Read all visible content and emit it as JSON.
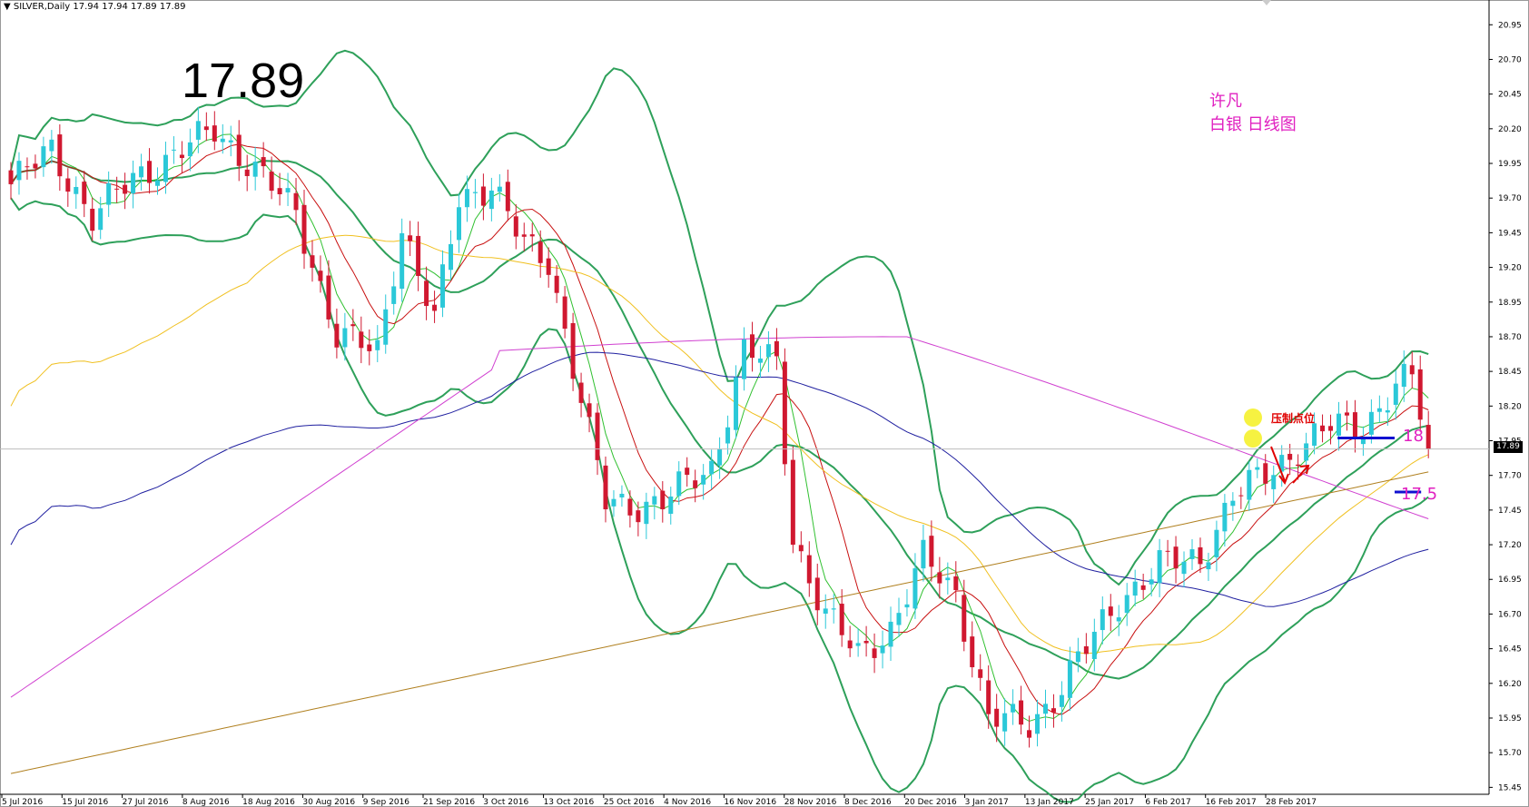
{
  "header": {
    "text": "▼ SILVER,Daily  17.94 17.94 17.89 17.89"
  },
  "big_price": "17.89",
  "note": {
    "line1": "许凡",
    "line2": "白银 日线图"
  },
  "annotations": {
    "pressure": "压制点位",
    "level_high": "18",
    "level_low": "17.5"
  },
  "price_tag": "17.89",
  "colors": {
    "bull": "#2bc8d8",
    "bear": "#d01830",
    "bollinger": "#2ea05a",
    "ma_red": "#c81010",
    "ma_green": "#30c030",
    "ma_yellow": "#f0c020",
    "ma_blue": "#2020a0",
    "ma_magenta": "#d040d0",
    "ma_brown": "#b08020",
    "level_line": "#1010d0"
  },
  "chart_data": {
    "type": "candlestick",
    "title": "SILVER,Daily",
    "y_ticks": [
      "20.95",
      "20.70",
      "20.45",
      "20.20",
      "19.95",
      "19.70",
      "19.45",
      "19.20",
      "18.95",
      "18.70",
      "18.45",
      "18.20",
      "17.95",
      "17.70",
      "17.45",
      "17.20",
      "16.95",
      "16.70",
      "16.45",
      "16.20",
      "15.95",
      "15.70",
      "15.45"
    ],
    "ylim": [
      15.4,
      21.05
    ],
    "x_ticks": [
      "5 Jul 2016",
      "15 Jul 2016",
      "27 Jul 2016",
      "8 Aug 2016",
      "18 Aug 2016",
      "30 Aug 2016",
      "9 Sep 2016",
      "21 Sep 2016",
      "3 Oct 2016",
      "13 Oct 2016",
      "25 Oct 2016",
      "4 Nov 2016",
      "16 Nov 2016",
      "28 Nov 2016",
      "8 Dec 2016",
      "20 Dec 2016",
      "3 Jan 2017",
      "13 Jan 2017",
      "25 Jan 2017",
      "6 Feb 2017",
      "16 Feb 2017",
      "28 Feb 2017"
    ],
    "close_anchors": [
      [
        0,
        19.8
      ],
      [
        5,
        20.05
      ],
      [
        10,
        19.55
      ],
      [
        15,
        19.85
      ],
      [
        20,
        20.0
      ],
      [
        25,
        20.2
      ],
      [
        30,
        19.9
      ],
      [
        35,
        19.6
      ],
      [
        40,
        18.7
      ],
      [
        45,
        18.6
      ],
      [
        48,
        19.5
      ],
      [
        52,
        18.8
      ],
      [
        55,
        19.7
      ],
      [
        59,
        19.8
      ],
      [
        63,
        19.35
      ],
      [
        66,
        19.25
      ],
      [
        69,
        18.5
      ],
      [
        73,
        17.5
      ],
      [
        76,
        17.48
      ],
      [
        80,
        17.52
      ],
      [
        86,
        17.75
      ],
      [
        90,
        18.6
      ],
      [
        94,
        18.5
      ],
      [
        96,
        17.25
      ],
      [
        100,
        16.7
      ],
      [
        104,
        16.4
      ],
      [
        108,
        16.6
      ],
      [
        112,
        17.1
      ],
      [
        116,
        16.85
      ],
      [
        120,
        15.95
      ],
      [
        125,
        15.9
      ],
      [
        128,
        16.1
      ],
      [
        132,
        16.45
      ],
      [
        136,
        16.8
      ],
      [
        141,
        17.05
      ],
      [
        146,
        17.1
      ],
      [
        150,
        17.55
      ],
      [
        154,
        17.7
      ],
      [
        158,
        17.9
      ],
      [
        162,
        18.05
      ],
      [
        166,
        18.05
      ],
      [
        170,
        18.35
      ],
      [
        172,
        18.4
      ],
      [
        174,
        17.89
      ]
    ],
    "levels": [
      {
        "label": "18",
        "value": 17.97
      },
      {
        "label": "17.5",
        "value": 17.58
      }
    ],
    "last_price": 17.89,
    "grid": false
  }
}
